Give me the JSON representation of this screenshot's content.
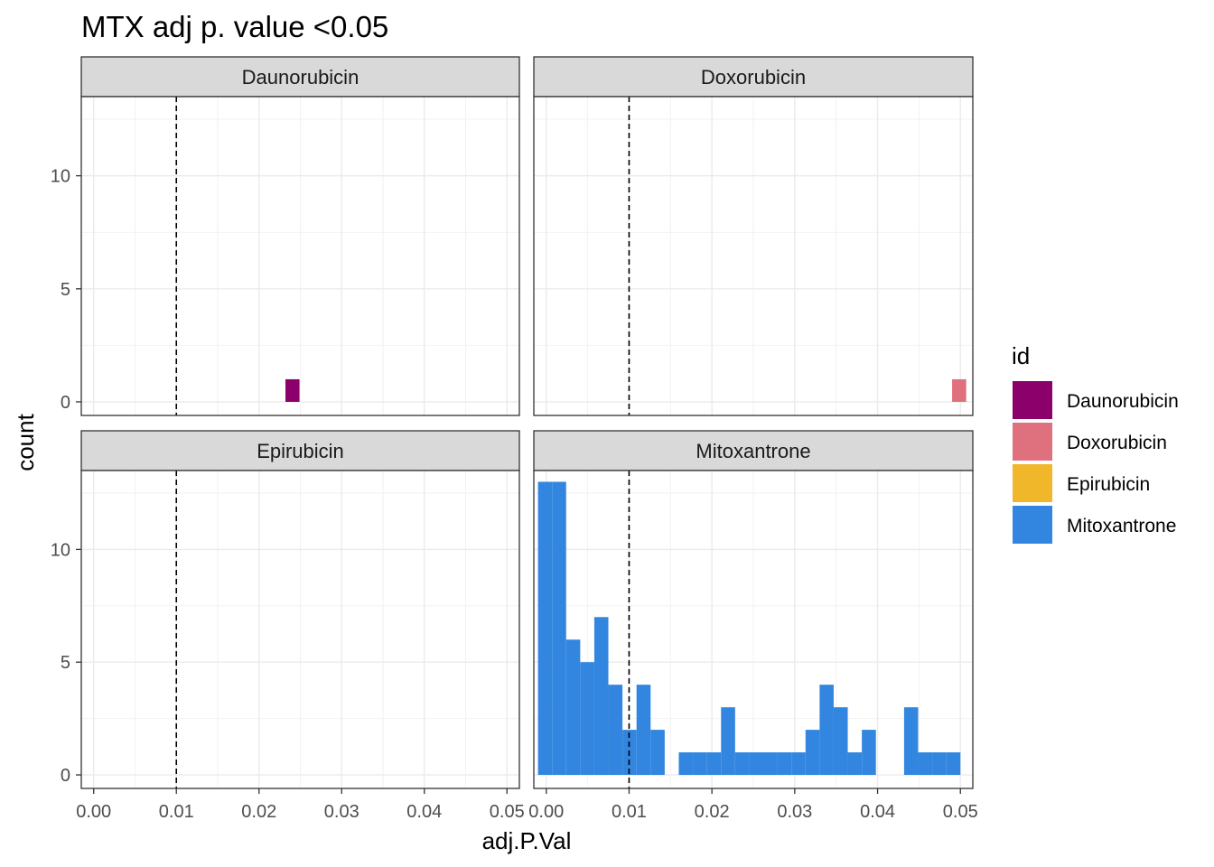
{
  "chart_data": {
    "type": "bar",
    "subtype": "faceted-histogram",
    "title": "MTX adj p. value <0.05",
    "xlabel": "adj.P.Val",
    "ylabel": "count",
    "xlim": [
      -0.0015,
      0.0515
    ],
    "ylim": [
      -0.6,
      13.5
    ],
    "x_ticks": [
      0.0,
      0.01,
      0.02,
      0.03,
      0.04,
      0.05
    ],
    "x_tick_labels": [
      "0.00",
      "0.01",
      "0.02",
      "0.03",
      "0.04",
      "0.05"
    ],
    "y_ticks": [
      0,
      5,
      10
    ],
    "y_tick_labels": [
      "0",
      "5",
      "10"
    ],
    "grid": true,
    "reference_line": {
      "x": 0.01,
      "style": "dashed"
    },
    "bin_width": 0.0017,
    "legend": {
      "title": "id",
      "position": "right",
      "entries": [
        "Daunorubicin",
        "Doxorubicin",
        "Epirubicin",
        "Mitoxantrone"
      ]
    },
    "colors": {
      "Daunorubicin": "#8B006B",
      "Doxorubicin": "#DF707E",
      "Epirubicin": "#F1B72B",
      "Mitoxantrone": "#3386E0"
    },
    "facets": [
      {
        "name": "Daunorubicin",
        "bins": [
          [
            0.0232,
            0.0249,
            1
          ]
        ]
      },
      {
        "name": "Doxorubicin",
        "bins": [
          [
            0.049,
            0.0507,
            1
          ]
        ]
      },
      {
        "name": "Epirubicin",
        "bins": []
      },
      {
        "name": "Mitoxantrone",
        "bins": [
          [
            -0.001,
            0.0007,
            13
          ],
          [
            0.0007,
            0.0024,
            13
          ],
          [
            0.0024,
            0.0041,
            6
          ],
          [
            0.0041,
            0.0058,
            5
          ],
          [
            0.0058,
            0.0075,
            7
          ],
          [
            0.0075,
            0.0092,
            4
          ],
          [
            0.0092,
            0.0109,
            2
          ],
          [
            0.0109,
            0.0126,
            4
          ],
          [
            0.0126,
            0.0143,
            2
          ],
          [
            0.016,
            0.0177,
            1
          ],
          [
            0.0177,
            0.0194,
            1
          ],
          [
            0.0194,
            0.0211,
            1
          ],
          [
            0.0211,
            0.0228,
            3
          ],
          [
            0.0228,
            0.0245,
            1
          ],
          [
            0.0245,
            0.0262,
            1
          ],
          [
            0.0262,
            0.0279,
            1
          ],
          [
            0.0279,
            0.0296,
            1
          ],
          [
            0.0296,
            0.0313,
            1
          ],
          [
            0.0313,
            0.033,
            2
          ],
          [
            0.033,
            0.0347,
            4
          ],
          [
            0.0347,
            0.0364,
            3
          ],
          [
            0.0364,
            0.0381,
            1
          ],
          [
            0.0381,
            0.0398,
            2
          ],
          [
            0.0432,
            0.0449,
            3
          ],
          [
            0.0449,
            0.0466,
            1
          ],
          [
            0.0466,
            0.0483,
            1
          ],
          [
            0.0483,
            0.05,
            1
          ]
        ]
      }
    ]
  }
}
